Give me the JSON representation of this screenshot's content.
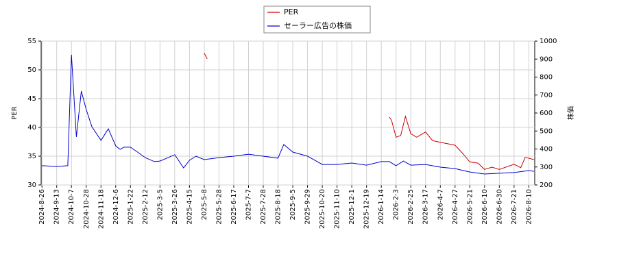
{
  "chart_data": {
    "type": "line",
    "y_label": "PER",
    "y2_label": "株価",
    "grid": true,
    "legend": "upper center",
    "xlim": [
      "2024-8-25",
      "2026-8-18"
    ],
    "xticks": [
      "2024-8-26",
      "2024-9-13",
      "2024-10-7",
      "2024-10-28",
      "2024-11-18",
      "2024-12-6",
      "2025-1-22",
      "2025-2-12",
      "2025-3-5",
      "2025-3-26",
      "2025-4-15",
      "2025-5-8",
      "2025-5-28",
      "2025-6-17",
      "2025-7-7",
      "2025-7-28",
      "2025-8-18",
      "2025-9-5",
      "2025-9-29",
      "2025-10-20",
      "2025-11-10",
      "2025-12-1",
      "2025-12-19",
      "2026-1-14",
      "2026-2-3",
      "2026-2-25",
      "2026-3-17",
      "2026-4-7",
      "2026-4-27",
      "2026-5-21",
      "2026-6-10",
      "2026-6-30",
      "2026-7-21",
      "2026-8-10"
    ],
    "ylim": [
      30,
      55
    ],
    "yticks": [
      30,
      35,
      40,
      45,
      50,
      55
    ],
    "y2lim": [
      200,
      1000
    ],
    "y2ticks": [
      200,
      300,
      400,
      500,
      600,
      700,
      800,
      900,
      1000
    ],
    "series": [
      {
        "name": "PER",
        "color": "#cc0000",
        "x": [
          "2025-5-8",
          "2025-5-12",
          "2025-9-5",
          "2026-1-25",
          "2026-1-28",
          "2026-2-3",
          "2026-2-10",
          "2026-2-17",
          "2026-2-25",
          "2026-3-5",
          "2026-3-17",
          "2026-3-27",
          "2026-4-7",
          "2026-4-27",
          "2026-5-10",
          "2026-5-21",
          "2026-6-1",
          "2026-6-10",
          "2026-6-20",
          "2026-6-30",
          "2026-7-21",
          "2026-7-30",
          "2026-8-5",
          "2026-8-17"
        ],
        "values": [
          52.9,
          51.9,
          null,
          41.8,
          41.2,
          38.3,
          38.6,
          41.9,
          38.9,
          38.3,
          39.2,
          37.7,
          37.4,
          36.9,
          35.4,
          34.0,
          33.8,
          32.7,
          33.1,
          32.7,
          33.6,
          33.0,
          34.8,
          34.4
        ]
      },
      {
        "name": "セーラー広告の株価",
        "color": "#0000cc",
        "axis": "y2",
        "x": [
          "2024-8-26",
          "2024-9-13",
          "2024-10-1",
          "2024-10-7",
          "2024-10-14",
          "2024-10-21",
          "2024-10-28",
          "2024-11-5",
          "2024-11-18",
          "2024-11-27",
          "2024-12-6",
          "2024-12-20",
          "2025-1-1",
          "2025-1-22",
          "2025-2-1",
          "2025-2-12",
          "2025-2-25",
          "2025-3-5",
          "2025-3-26",
          "2025-4-7",
          "2025-4-15",
          "2025-4-25",
          "2025-5-8",
          "2025-5-28",
          "2025-6-17",
          "2025-7-7",
          "2025-7-28",
          "2025-8-18",
          "2025-8-25",
          "2025-9-5",
          "2025-9-29",
          "2025-10-20",
          "2025-11-10",
          "2025-12-1",
          "2025-12-19",
          "2026-1-14",
          "2026-1-25",
          "2026-2-3",
          "2026-2-14",
          "2026-2-25",
          "2026-3-17",
          "2026-4-7",
          "2026-4-27",
          "2026-5-21",
          "2026-6-10",
          "2026-6-30",
          "2026-7-21",
          "2026-8-10",
          "2026-8-17"
        ],
        "values": [
          307,
          303,
          307,
          924,
          467,
          722,
          619,
          524,
          448,
          512,
          417,
          398,
          410,
          410,
          383,
          352,
          330,
          333,
          368,
          295,
          337,
          360,
          341,
          352,
          360,
          371,
          360,
          349,
          425,
          383,
          360,
          314,
          314,
          322,
          310,
          330,
          330,
          307,
          333,
          310,
          314,
          299,
          291,
          272,
          261,
          265,
          269,
          280,
          276
        ]
      }
    ]
  }
}
